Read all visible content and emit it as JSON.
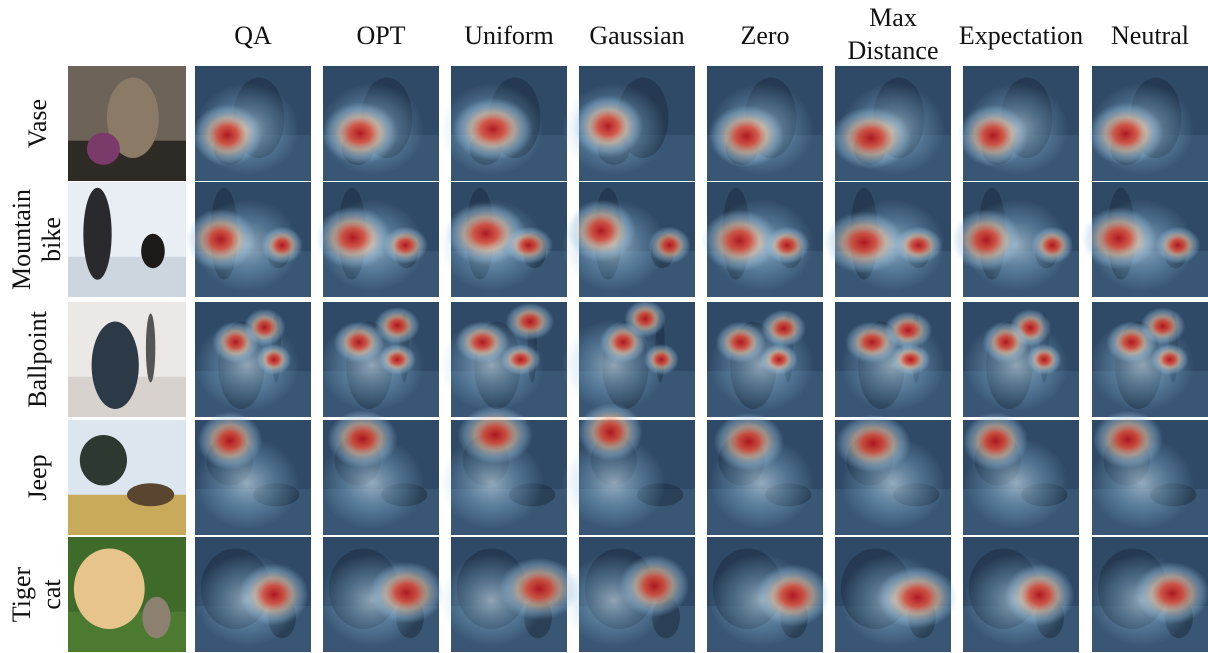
{
  "columns": [
    [
      "QA"
    ],
    [
      "OPT"
    ],
    [
      "Uniform"
    ],
    [
      "Gaussian"
    ],
    [
      "Zero"
    ],
    [
      "Max",
      "Distance"
    ],
    [
      "Expectation"
    ],
    [
      "Neutral"
    ]
  ],
  "rows": [
    [
      "Vase"
    ],
    [
      "Mountain",
      "bike"
    ],
    [
      "Ballpoint"
    ],
    [
      "Jeep"
    ],
    [
      "Tiger",
      "cat"
    ]
  ]
}
